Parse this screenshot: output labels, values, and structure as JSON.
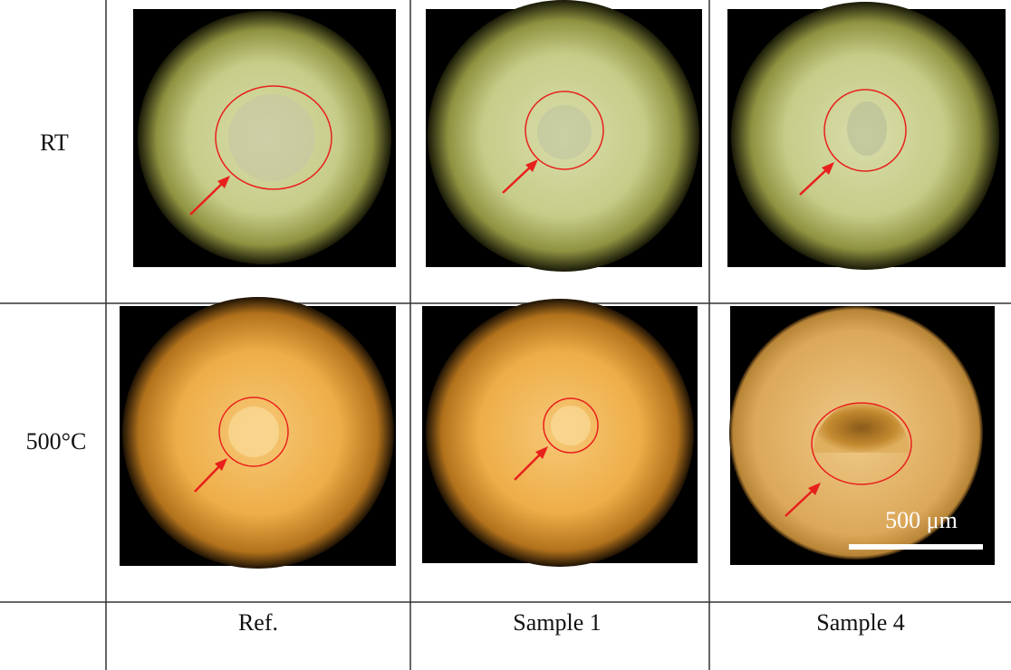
{
  "table": {
    "row_labels": [
      "RT",
      "500°C"
    ],
    "column_labels": [
      "Ref.",
      "Sample 1",
      "Sample 4"
    ]
  },
  "scale_bar": {
    "label": "500 μm"
  }
}
